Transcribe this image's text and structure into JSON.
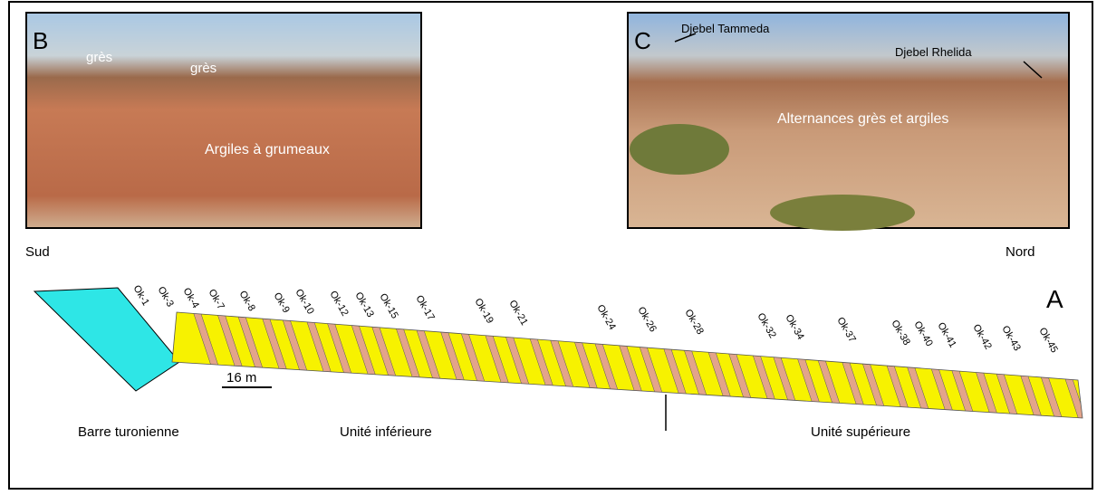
{
  "panels": {
    "b": {
      "label": "B",
      "annotations": [
        "grès",
        "grès",
        "Argiles à grumeaux"
      ]
    },
    "c": {
      "label": "C",
      "annotations": [
        "Djebel Tammeda",
        "Djebel Rhelida",
        "Alternances grès et argiles"
      ]
    }
  },
  "section": {
    "label": "A",
    "south": "Sud",
    "north": "Nord",
    "scale": "16 m",
    "samples": [
      "Ok-1",
      "Ok-3",
      "Ok-4",
      "Ok-7",
      "Ok-8",
      "Ok-9",
      "Ok-10",
      "Ok-12",
      "Ok-13",
      "Ok-15",
      "Ok-17",
      "Ok-19",
      "Ok-21",
      "Ok-24",
      "Ok-26",
      "Ok-28",
      "Ok-32",
      "Ok-34",
      "Ok-37",
      "Ok-38",
      "Ok-40",
      "Ok-41",
      "Ok-42",
      "Ok-43",
      "Ok-45"
    ],
    "units": [
      "Barre turonienne",
      "Unité inférieure",
      "Unité supérieure"
    ]
  }
}
